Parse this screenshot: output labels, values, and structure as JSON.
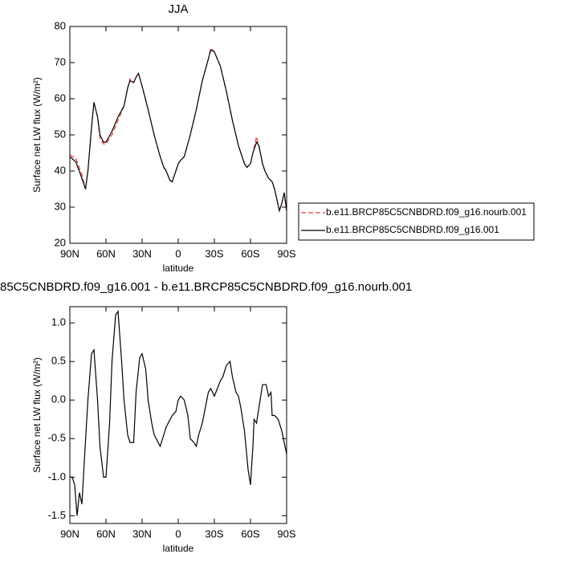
{
  "chart_data": [
    {
      "type": "line",
      "title": "JJA",
      "xlabel": "latitude",
      "ylabel": "Surface net LW flux (W/m²)",
      "xlim": [
        90,
        -90
      ],
      "ylim": [
        20,
        80
      ],
      "xticks": [
        {
          "value": 90,
          "label": "90N"
        },
        {
          "value": 60,
          "label": "60N"
        },
        {
          "value": 30,
          "label": "30N"
        },
        0,
        {
          "value": -30,
          "label": "30S"
        },
        {
          "value": -60,
          "label": "60S"
        },
        {
          "value": -90,
          "label": "90S"
        }
      ],
      "yticks": [
        20,
        30,
        40,
        50,
        60,
        70,
        80
      ],
      "x": [
        90,
        85,
        80,
        77,
        75,
        72,
        70,
        67,
        65,
        62,
        60,
        55,
        50,
        45,
        42,
        40,
        37,
        35,
        33,
        30,
        25,
        20,
        15,
        12,
        10,
        7,
        5,
        2,
        0,
        -2,
        -5,
        -10,
        -15,
        -20,
        -25,
        -27,
        -30,
        -35,
        -40,
        -45,
        -50,
        -55,
        -57,
        -60,
        -62,
        -65,
        -67,
        -70,
        -72,
        -75,
        -78,
        -80,
        -82,
        -84,
        -86,
        -88,
        -90
      ],
      "series": [
        {
          "name": "b.e11.BRCP85C5CNBDRD.f09_g16.nourb.001",
          "color": "#e8403a",
          "dashed": true,
          "values": [
            44.5,
            43.5,
            39,
            35,
            40,
            52,
            59,
            55,
            49,
            47.5,
            47.5,
            50,
            54,
            58,
            63,
            65.5,
            64.5,
            66,
            67,
            63.5,
            57,
            50,
            44,
            41,
            40,
            37.5,
            37,
            40,
            42,
            43,
            44,
            50,
            57,
            65,
            71,
            74,
            73,
            69,
            62,
            54,
            47,
            42,
            41,
            42,
            45,
            49.5,
            47,
            42,
            40,
            38,
            37,
            35,
            32,
            29,
            31,
            34,
            29
          ]
        },
        {
          "name": "b.e11.BRCP85C5CNBDRD.f09_g16.001",
          "color": "#000000",
          "dashed": false,
          "values": [
            44,
            42.5,
            38,
            35,
            40,
            52,
            59,
            55,
            50,
            48,
            48,
            51,
            55,
            58,
            63,
            65,
            64.5,
            66,
            67,
            63.5,
            57,
            50,
            44,
            41,
            40,
            37.5,
            37,
            40,
            42,
            43,
            44,
            50,
            57,
            65,
            71,
            73.5,
            73,
            69,
            62,
            54,
            47,
            42,
            41,
            42,
            45,
            48,
            47,
            42,
            40,
            38,
            37,
            35,
            32,
            29,
            31,
            34,
            29
          ]
        }
      ]
    },
    {
      "type": "line",
      "title": "85C5CNBDRD.f09_g16.001 - b.e11.BRCP85C5CNBDRD.f09_g16.nourb.001",
      "xlabel": "latitude",
      "ylabel": "Surface net LW flux (W/m²)",
      "xlim": [
        90,
        -90
      ],
      "ylim": [
        -1.6,
        1.21
      ],
      "xticks": [
        {
          "value": 90,
          "label": "90N"
        },
        {
          "value": 60,
          "label": "60N"
        },
        {
          "value": 30,
          "label": "30N"
        },
        0,
        {
          "value": -30,
          "label": "30S"
        },
        {
          "value": -60,
          "label": "60S"
        },
        {
          "value": -90,
          "label": "90S"
        }
      ],
      "yticks": [
        {
          "value": -1.5,
          "label": "-1.5"
        },
        {
          "value": -1,
          "label": "-1.0"
        },
        -0.5,
        {
          "value": 0,
          "label": "0.0"
        },
        0.5,
        {
          "value": 1,
          "label": "1.0"
        }
      ],
      "x": [
        90,
        88,
        86,
        84,
        82,
        80,
        78,
        75,
        72,
        70,
        67,
        65,
        62,
        60,
        57,
        55,
        52,
        50,
        47,
        45,
        42,
        40,
        37,
        35,
        32,
        30,
        27,
        25,
        22,
        20,
        15,
        12,
        10,
        5,
        2,
        0,
        -2,
        -5,
        -8,
        -10,
        -13,
        -15,
        -17,
        -20,
        -25,
        -27,
        -30,
        -35,
        -37,
        -40,
        -43,
        -45,
        -48,
        -50,
        -52,
        -55,
        -58,
        -60,
        -62,
        -63,
        -65,
        -68,
        -70,
        -73,
        -75,
        -77,
        -78,
        -80,
        -83,
        -86,
        -90
      ],
      "series": [
        {
          "color": "#000000",
          "dashed": false,
          "values": [
            -1.0,
            -1.0,
            -1.1,
            -1.5,
            -1.2,
            -1.35,
            -0.8,
            0.0,
            0.6,
            0.65,
            0.0,
            -0.6,
            -1.0,
            -1.0,
            -0.3,
            0.5,
            1.1,
            1.15,
            0.5,
            0.0,
            -0.45,
            -0.55,
            -0.55,
            0.1,
            0.55,
            0.6,
            0.4,
            0.0,
            -0.3,
            -0.45,
            -0.6,
            -0.45,
            -0.35,
            -0.2,
            -0.15,
            0.0,
            0.05,
            0.0,
            -0.2,
            -0.5,
            -0.55,
            -0.6,
            -0.45,
            -0.3,
            0.1,
            0.15,
            0.05,
            0.25,
            0.3,
            0.45,
            0.5,
            0.3,
            0.1,
            0.05,
            -0.1,
            -0.4,
            -0.9,
            -1.1,
            -0.6,
            -0.25,
            -0.3,
            0.0,
            0.2,
            0.2,
            0.05,
            0.1,
            -0.2,
            -0.2,
            -0.25,
            -0.4,
            -0.7
          ]
        }
      ]
    }
  ]
}
